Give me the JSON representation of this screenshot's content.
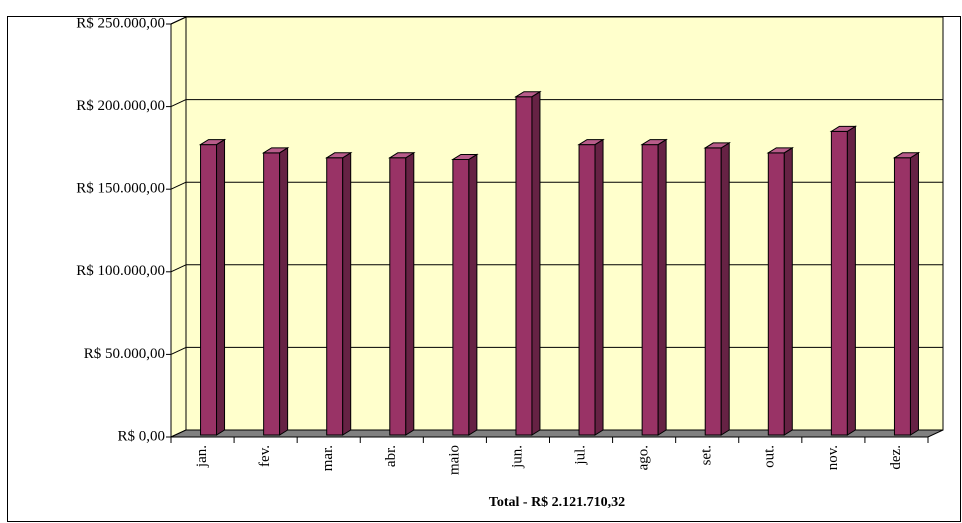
{
  "chart_data": {
    "type": "bar",
    "x_label": "Total - R$ 2.121.710,32",
    "categories": [
      "jan.",
      "fev.",
      "mar.",
      "abr.",
      "maio",
      "jun.",
      "jul.",
      "ago.",
      "set.",
      "out.",
      "nov.",
      "dez."
    ],
    "values": [
      177000,
      172000,
      169000,
      169000,
      168000,
      206000,
      177000,
      177000,
      175000,
      172000,
      185000,
      169000
    ],
    "color": "#993366",
    "ylim": [
      0,
      250000
    ],
    "yticks": [
      {
        "value": 0,
        "label": "R$ 0,00"
      },
      {
        "value": 50000,
        "label": "R$ 50.000,00"
      },
      {
        "value": 100000,
        "label": "R$ 100.000,00"
      },
      {
        "value": 150000,
        "label": "R$ 150.000,00"
      },
      {
        "value": 200000,
        "label": "R$ 200.000,00"
      },
      {
        "value": 250000,
        "label": "R$ 250.000,00"
      }
    ],
    "grid": true
  }
}
